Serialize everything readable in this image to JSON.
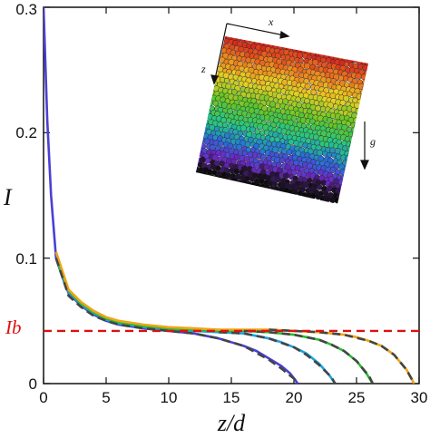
{
  "chart_data": {
    "type": "line",
    "xlabel": "z/d",
    "ylabel": "I",
    "xlim": [
      0,
      30
    ],
    "ylim": [
      0,
      0.3
    ],
    "x_ticks": [
      "0",
      "5",
      "10",
      "15",
      "20",
      "25",
      "30"
    ],
    "y_ticks": [
      "0",
      "0.1",
      "0.2",
      "0.3"
    ],
    "reference_line": {
      "label": "I_b",
      "label_text": "Ib",
      "y": 0.042,
      "color": "#dd1111",
      "style": "dashed"
    },
    "series": [
      {
        "color": "#4a3fd6",
        "z_end": 20.3,
        "x": [
          0,
          0.3,
          0.6,
          1,
          1.5,
          2,
          3,
          4,
          5,
          6,
          8,
          10,
          12,
          14,
          16,
          17,
          18,
          19,
          19.7,
          20.1,
          20.3
        ],
        "y": [
          0.3,
          0.21,
          0.15,
          0.1,
          0.085,
          0.072,
          0.062,
          0.055,
          0.05,
          0.047,
          0.044,
          0.042,
          0.04,
          0.036,
          0.03,
          0.026,
          0.02,
          0.014,
          0.008,
          0.003,
          0.0
        ]
      },
      {
        "color": "#19a3df",
        "z_end": 23.3,
        "x": [
          1,
          2,
          3,
          4,
          5,
          6,
          8,
          10,
          12,
          14,
          16,
          18,
          19,
          20,
          21,
          22,
          22.8,
          23.3
        ],
        "y": [
          0.1,
          0.073,
          0.063,
          0.056,
          0.051,
          0.048,
          0.045,
          0.043,
          0.042,
          0.041,
          0.04,
          0.036,
          0.033,
          0.029,
          0.024,
          0.016,
          0.007,
          0.0
        ]
      },
      {
        "color": "#22c02a",
        "z_end": 26.3,
        "x": [
          1,
          2,
          3,
          4,
          5,
          6,
          8,
          10,
          12,
          14,
          16,
          18,
          20,
          21,
          22,
          23,
          24,
          25,
          25.8,
          26.3
        ],
        "y": [
          0.1,
          0.074,
          0.064,
          0.057,
          0.052,
          0.049,
          0.046,
          0.044,
          0.043,
          0.042,
          0.042,
          0.041,
          0.039,
          0.037,
          0.035,
          0.031,
          0.026,
          0.018,
          0.008,
          0.0
        ]
      },
      {
        "color": "#f0a515",
        "z_end": 29.6,
        "x": [
          1,
          2,
          3,
          4,
          5,
          6,
          8,
          10,
          12,
          14,
          16,
          18,
          20,
          22,
          24,
          25,
          26,
          27,
          28,
          29,
          29.6
        ],
        "y": [
          0.105,
          0.075,
          0.065,
          0.058,
          0.053,
          0.05,
          0.047,
          0.045,
          0.044,
          0.043,
          0.043,
          0.043,
          0.042,
          0.041,
          0.039,
          0.037,
          0.034,
          0.03,
          0.023,
          0.011,
          0.0
        ]
      },
      {
        "color": "#444444",
        "style": "dashed",
        "x": [
          1,
          2,
          3,
          4,
          5,
          6,
          8,
          10,
          12,
          14,
          16,
          18,
          19,
          20,
          20.4
        ],
        "y": [
          0.1,
          0.07,
          0.061,
          0.054,
          0.05,
          0.047,
          0.044,
          0.042,
          0.04,
          0.036,
          0.03,
          0.019,
          0.012,
          0.004,
          0.0
        ]
      },
      {
        "color": "#444444",
        "style": "dashed",
        "x": [
          14,
          16,
          18,
          20,
          21,
          22,
          23,
          23.3
        ],
        "y": [
          0.041,
          0.04,
          0.036,
          0.029,
          0.023,
          0.015,
          0.005,
          0.0
        ]
      },
      {
        "color": "#444444",
        "style": "dashed",
        "x": [
          16,
          18,
          20,
          22,
          23,
          24,
          25,
          26,
          26.3
        ],
        "y": [
          0.042,
          0.041,
          0.039,
          0.035,
          0.031,
          0.026,
          0.018,
          0.006,
          0.0
        ]
      },
      {
        "color": "#444444",
        "style": "dashed",
        "x": [
          18,
          20,
          22,
          24,
          26,
          27,
          28,
          29,
          29.6
        ],
        "y": [
          0.043,
          0.042,
          0.041,
          0.039,
          0.034,
          0.03,
          0.023,
          0.011,
          0.0
        ]
      }
    ],
    "grid": false,
    "legend": "none"
  },
  "inset": {
    "vector_labels": {
      "x": "x⃗",
      "z": "z⃗",
      "g": "g⃗"
    }
  }
}
